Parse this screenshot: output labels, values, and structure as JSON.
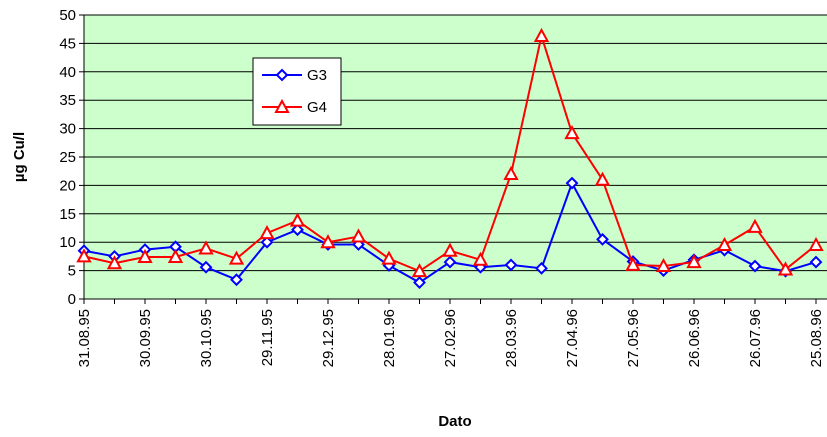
{
  "chart_data": {
    "type": "line",
    "x_label": "Dato",
    "y_label": "µg Cu/l",
    "categories": [
      "31.08.95",
      null,
      "30.09.95",
      null,
      "30.10.95",
      null,
      "29.11.95",
      null,
      "29.12.95",
      null,
      "28.01.96",
      null,
      "27.02.96",
      null,
      "28.03.96",
      null,
      "27.04.96",
      null,
      "27.05.96",
      null,
      "26.06.96",
      null,
      "26.07.96",
      null,
      "25.08.96"
    ],
    "series": [
      {
        "name": "G3",
        "color": "#0000ff",
        "marker": "diamond",
        "values": [
          8.5,
          7.5,
          8.7,
          9.2,
          5.6,
          3.4,
          10,
          12.2,
          9.6,
          9.6,
          5.9,
          2.9,
          6.5,
          5.6,
          6,
          5.4,
          20.4,
          10.5,
          6.6,
          5,
          6.9,
          8.6,
          5.8,
          4.9,
          6.5
        ]
      },
      {
        "name": "G4",
        "color": "#ff0000",
        "marker": "triangle",
        "values": [
          7.5,
          6.3,
          7.4,
          7.4,
          8.9,
          7.1,
          11.6,
          13.8,
          10,
          11,
          7.1,
          4.9,
          8.5,
          6.9,
          22,
          46.3,
          29.2,
          21,
          6,
          5.8,
          6.5,
          9.5,
          12.7,
          5.2,
          9.5
        ]
      }
    ],
    "ylim": [
      0,
      50
    ],
    "yticks": [
      0,
      5,
      10,
      15,
      20,
      25,
      30,
      35,
      40,
      45,
      50
    ],
    "grid": true,
    "background": "#ccffcc"
  }
}
